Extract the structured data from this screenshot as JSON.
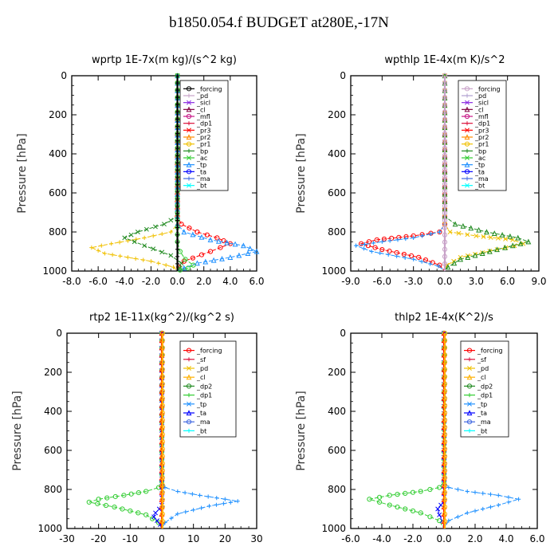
{
  "title": "b1850.054.f  BUDGET at280E,-17N",
  "chart_data": [
    {
      "type": "line",
      "title": "wprtp   1E-7x(m kg)/(s^2 kg)",
      "ylabel": "Pressure [hPa]",
      "xlim": [
        -8,
        6
      ],
      "xticks": [
        "-8.0",
        "-6.0",
        "-4.0",
        "-2.0",
        "0.0",
        "2.0",
        "4.0",
        "6.0"
      ],
      "xtick_values": [
        -8,
        -6,
        -4,
        -2,
        0,
        2,
        4,
        6
      ],
      "ylim": [
        0,
        1000
      ],
      "yticks": [
        "0",
        "200",
        "400",
        "600",
        "800",
        "1000"
      ],
      "ytick_values": [
        0,
        200,
        400,
        600,
        800,
        1000
      ],
      "y_inverted": true,
      "legend": [
        {
          "label": "_forcing",
          "color": "#000000"
        },
        {
          "label": "_pd",
          "color": "#c8a2c8"
        },
        {
          "label": "_sicl",
          "color": "#8a2be2"
        },
        {
          "label": "_cl",
          "color": "#800040"
        },
        {
          "label": "_mfl",
          "color": "#c71585"
        },
        {
          "label": "_dp1",
          "color": "#dc143c"
        },
        {
          "label": "_pr3",
          "color": "#ff0000"
        },
        {
          "label": "_pr2",
          "color": "#ff8c00"
        },
        {
          "label": "_pr1",
          "color": "#f0c000"
        },
        {
          "label": "_bp",
          "color": "#228b22"
        },
        {
          "label": "_ac",
          "color": "#32cd32"
        },
        {
          "label": "_tp",
          "color": "#1e90ff"
        },
        {
          "label": "_ta",
          "color": "#0000ff"
        },
        {
          "label": "_ma",
          "color": "#4169e1"
        },
        {
          "label": "_bt",
          "color": "#00ffff"
        }
      ],
      "series": [
        {
          "color": "#ff0000",
          "x": [
            0,
            0,
            0.3,
            1.5,
            3.0,
            4.0,
            2.5,
            0.5,
            0.1,
            0
          ],
          "y": [
            0,
            720,
            760,
            800,
            830,
            860,
            900,
            950,
            980,
            1000
          ]
        },
        {
          "color": "#f0c000",
          "x": [
            0,
            0,
            -0.5,
            -2.5,
            -5.0,
            -6.5,
            -5.5,
            -2.0,
            -0.3,
            0
          ],
          "y": [
            0,
            760,
            800,
            830,
            860,
            880,
            910,
            950,
            980,
            1000
          ]
        },
        {
          "color": "#228b22",
          "x": [
            0,
            0,
            -1.0,
            -3.0,
            -4.0,
            -2.5,
            -0.5,
            0.3,
            0.2,
            0
          ],
          "y": [
            0,
            720,
            760,
            800,
            830,
            870,
            920,
            960,
            985,
            1000
          ]
        },
        {
          "color": "#1e90ff",
          "x": [
            0,
            0,
            0.5,
            2.5,
            5.0,
            6.0,
            4.0,
            1.5,
            0.5,
            0
          ],
          "y": [
            0,
            760,
            800,
            840,
            870,
            900,
            930,
            960,
            985,
            1000
          ]
        },
        {
          "color": "#32cd32",
          "x": [
            0,
            0,
            0.2,
            0.6,
            1.2,
            0.8,
            0.2,
            0
          ],
          "y": [
            0,
            850,
            900,
            940,
            970,
            985,
            995,
            1000
          ]
        },
        {
          "color": "#000000",
          "x": [
            0,
            0
          ],
          "y": [
            0,
            1000
          ]
        }
      ]
    },
    {
      "type": "line",
      "title": "wpthlp   1E-4x(m K)/s^2",
      "ylabel": "Pressure [hPa]",
      "xlim": [
        -9,
        9
      ],
      "xticks": [
        "-9.0",
        "-6.0",
        "-3.0",
        "0.0",
        "3.0",
        "6.0",
        "9.0"
      ],
      "xtick_values": [
        -9,
        -6,
        -3,
        0,
        3,
        6,
        9
      ],
      "ylim": [
        0,
        1000
      ],
      "yticks": [
        "0",
        "200",
        "400",
        "600",
        "800",
        "1000"
      ],
      "ytick_values": [
        0,
        200,
        400,
        600,
        800,
        1000
      ],
      "y_inverted": true,
      "legend": [
        {
          "label": "_forcing",
          "color": "#c8a2c8"
        },
        {
          "label": "_pd",
          "color": "#b0a0d0"
        },
        {
          "label": "_sicl",
          "color": "#8a2be2"
        },
        {
          "label": "_cl",
          "color": "#800040"
        },
        {
          "label": "_mfl",
          "color": "#c71585"
        },
        {
          "label": "_dp1",
          "color": "#dc143c"
        },
        {
          "label": "_pr3",
          "color": "#ff0000"
        },
        {
          "label": "_pr2",
          "color": "#ff8c00"
        },
        {
          "label": "_pr1",
          "color": "#f0c000"
        },
        {
          "label": "_bp",
          "color": "#228b22"
        },
        {
          "label": "_ac",
          "color": "#32cd32"
        },
        {
          "label": "_tp",
          "color": "#1e90ff"
        },
        {
          "label": "_ta",
          "color": "#0000ff"
        },
        {
          "label": "_ma",
          "color": "#4169e1"
        },
        {
          "label": "_bt",
          "color": "#00ffff"
        }
      ],
      "series": [
        {
          "color": "#ff0000",
          "x": [
            0,
            0,
            -0.5,
            -3.0,
            -6.5,
            -8.0,
            -6.0,
            -2.5,
            -0.5,
            0
          ],
          "y": [
            0,
            760,
            800,
            820,
            840,
            860,
            890,
            930,
            970,
            1000
          ]
        },
        {
          "color": "#1e90ff",
          "x": [
            0,
            0,
            -0.5,
            -3.0,
            -6.0,
            -8.5,
            -7.0,
            -3.0,
            -0.6,
            0
          ],
          "y": [
            0,
            760,
            800,
            830,
            850,
            870,
            900,
            940,
            975,
            1000
          ]
        },
        {
          "color": "#f0c000",
          "x": [
            0,
            0,
            0.5,
            3.0,
            6.5,
            7.5,
            5.0,
            1.5,
            0.2,
            0
          ],
          "y": [
            0,
            760,
            800,
            820,
            840,
            860,
            890,
            930,
            970,
            1000
          ]
        },
        {
          "color": "#228b22",
          "x": [
            0,
            0,
            1.0,
            4.0,
            7.0,
            8.0,
            5.0,
            1.5,
            0.3,
            0
          ],
          "y": [
            0,
            720,
            760,
            800,
            830,
            850,
            890,
            940,
            980,
            1000
          ]
        },
        {
          "color": "#c8a2c8",
          "x": [
            0,
            0
          ],
          "y": [
            0,
            1000
          ]
        }
      ]
    },
    {
      "type": "line",
      "title": "rtp2   1E-11x(kg^2)/(kg^2 s)",
      "ylabel": "Pressure [hPa]",
      "xlim": [
        -30,
        30
      ],
      "xticks": [
        "-30",
        "-20",
        "-10",
        "0",
        "10",
        "20",
        "30"
      ],
      "xtick_values": [
        -30,
        -20,
        -10,
        0,
        10,
        20,
        30
      ],
      "ylim": [
        0,
        1000
      ],
      "yticks": [
        "0",
        "200",
        "400",
        "600",
        "800",
        "1000"
      ],
      "ytick_values": [
        0,
        200,
        400,
        600,
        800,
        1000
      ],
      "y_inverted": true,
      "legend": [
        {
          "label": "_forcing",
          "color": "#ff0000"
        },
        {
          "label": "_sf",
          "color": "#dc143c"
        },
        {
          "label": "_pd",
          "color": "#f0c000"
        },
        {
          "label": "_cl",
          "color": "#ffb000"
        },
        {
          "label": "_dp2",
          "color": "#228b22"
        },
        {
          "label": "_dp1",
          "color": "#32cd32"
        },
        {
          "label": "_tp",
          "color": "#1e90ff"
        },
        {
          "label": "_ta",
          "color": "#0000ff"
        },
        {
          "label": "_ma",
          "color": "#4169e1"
        },
        {
          "label": "_bt",
          "color": "#00ffff"
        }
      ],
      "series": [
        {
          "color": "#32cd32",
          "x": [
            0,
            0,
            -1.0,
            -5.0,
            -12.0,
            -20.0,
            -23.0,
            -15.0,
            -5.0,
            -1.0,
            0
          ],
          "y": [
            0,
            760,
            790,
            810,
            830,
            850,
            865,
            890,
            930,
            970,
            1000
          ]
        },
        {
          "color": "#1e90ff",
          "x": [
            0,
            0,
            1.0,
            5.0,
            12.0,
            20.0,
            24.0,
            15.0,
            5.0,
            1.0,
            0
          ],
          "y": [
            0,
            760,
            790,
            810,
            830,
            850,
            860,
            885,
            925,
            970,
            1000
          ]
        },
        {
          "color": "#0000ff",
          "x": [
            0,
            0,
            -0.8,
            -2.0,
            -2.5,
            -1.5,
            -0.5,
            0
          ],
          "y": [
            0,
            880,
            900,
            920,
            940,
            960,
            980,
            1000
          ]
        },
        {
          "color": "#ff0000",
          "x": [
            0,
            0
          ],
          "y": [
            0,
            1000
          ]
        },
        {
          "color": "#ffb000",
          "x": [
            0.2,
            0.2
          ],
          "y": [
            0,
            1000
          ]
        }
      ]
    },
    {
      "type": "line",
      "title": "thlp2   1E-4x(K^2)/s",
      "ylabel": "Pressure [hPa]",
      "xlim": [
        -6,
        6
      ],
      "xticks": [
        "-6.0",
        "-4.0",
        "-2.0",
        "0.0",
        "2.0",
        "4.0",
        "6.0"
      ],
      "xtick_values": [
        -6,
        -4,
        -2,
        0,
        2,
        4,
        6
      ],
      "ylim": [
        0,
        1000
      ],
      "yticks": [
        "0",
        "200",
        "400",
        "600",
        "800",
        "1000"
      ],
      "ytick_values": [
        0,
        200,
        400,
        600,
        800,
        1000
      ],
      "y_inverted": true,
      "legend": [
        {
          "label": "_forcing",
          "color": "#ff0000"
        },
        {
          "label": "_sf",
          "color": "#dc143c"
        },
        {
          "label": "_pd",
          "color": "#f0c000"
        },
        {
          "label": "_cl",
          "color": "#ffb000"
        },
        {
          "label": "_dp2",
          "color": "#228b22"
        },
        {
          "label": "_dp1",
          "color": "#32cd32"
        },
        {
          "label": "_tp",
          "color": "#1e90ff"
        },
        {
          "label": "_ta",
          "color": "#0000ff"
        },
        {
          "label": "_ma",
          "color": "#4169e1"
        },
        {
          "label": "_bt",
          "color": "#00ffff"
        }
      ],
      "series": [
        {
          "color": "#32cd32",
          "x": [
            0,
            0,
            -0.3,
            -1.5,
            -3.5,
            -4.8,
            -3.5,
            -1.5,
            -0.3,
            0
          ],
          "y": [
            0,
            760,
            790,
            810,
            830,
            850,
            880,
            920,
            960,
            1000
          ]
        },
        {
          "color": "#1e90ff",
          "x": [
            0,
            0,
            0.3,
            1.5,
            3.5,
            4.8,
            3.5,
            1.5,
            0.3,
            0
          ],
          "y": [
            0,
            760,
            790,
            810,
            830,
            850,
            880,
            920,
            960,
            1000
          ]
        },
        {
          "color": "#0000ff",
          "x": [
            0,
            0,
            -0.2,
            -0.4,
            -0.3,
            -0.1,
            0
          ],
          "y": [
            0,
            860,
            880,
            900,
            930,
            960,
            1000
          ]
        },
        {
          "color": "#ff0000",
          "x": [
            0,
            0
          ],
          "y": [
            0,
            1000
          ]
        },
        {
          "color": "#ffb000",
          "x": [
            0.05,
            0.05
          ],
          "y": [
            0,
            1000
          ]
        }
      ]
    }
  ]
}
